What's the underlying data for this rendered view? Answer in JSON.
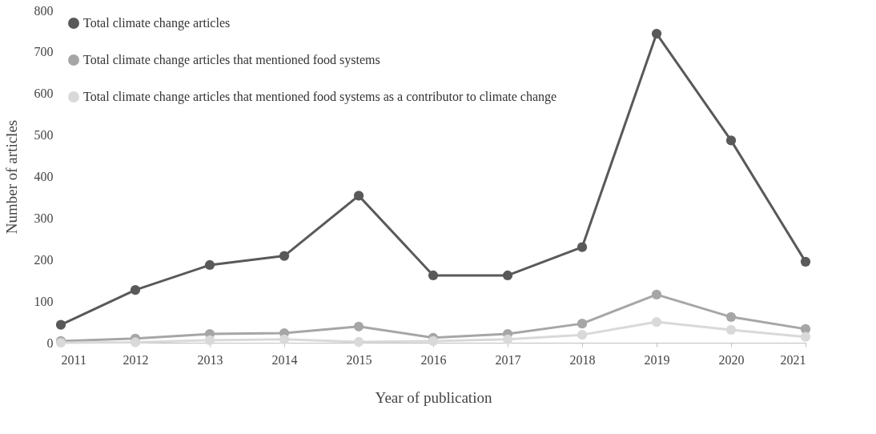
{
  "chart_data": {
    "type": "line",
    "xlabel": "Year of publication",
    "ylabel": "Number of articles",
    "x": [
      2011,
      2012,
      2013,
      2014,
      2015,
      2016,
      2017,
      2018,
      2019,
      2020,
      2021
    ],
    "xlim": [
      2011,
      2021
    ],
    "xticks": [
      2011,
      2012,
      2013,
      2014,
      2015,
      2016,
      2017,
      2018,
      2019,
      2020,
      2021
    ],
    "ylim": [
      0,
      800
    ],
    "yticks": [
      0,
      100,
      200,
      300,
      400,
      500,
      600,
      700,
      800
    ],
    "grid": false,
    "legend": "top left",
    "marker": "circle",
    "line_style": "solid",
    "series": [
      {
        "name": "Total climate change articles",
        "color": "#595959",
        "values": [
          43,
          127,
          187,
          209,
          354,
          162,
          162,
          230,
          744,
          487,
          195
        ]
      },
      {
        "name": "Total climate change articles that mentioned food systems",
        "color": "#a6a6a6",
        "values": [
          4,
          10,
          21,
          23,
          39,
          12,
          21,
          46,
          116,
          62,
          33
        ]
      },
      {
        "name": "Total climate change articles that mentioned food systems as a contributor to climate change",
        "color": "#d9d9d9",
        "values": [
          0,
          1,
          6,
          8,
          2,
          4,
          8,
          19,
          50,
          31,
          14
        ]
      }
    ]
  }
}
